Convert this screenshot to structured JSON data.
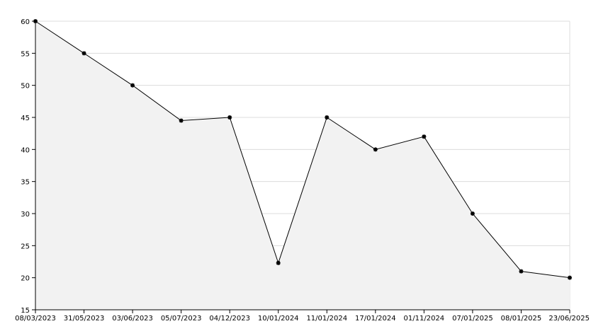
{
  "chart_data": {
    "type": "area",
    "categories": [
      "08/03/2023",
      "31/05/2023",
      "03/06/2023",
      "05/07/2023",
      "04/12/2023",
      "10/01/2024",
      "11/01/2024",
      "17/01/2024",
      "01/11/2024",
      "07/01/2025",
      "08/01/2025",
      "23/06/2025"
    ],
    "values": [
      60,
      55,
      50,
      44.5,
      45,
      22.3,
      45,
      40,
      42,
      30,
      21,
      20
    ],
    "yticks": [
      15,
      20,
      25,
      30,
      35,
      40,
      45,
      50,
      55,
      60
    ],
    "ylim": [
      15,
      60
    ],
    "grid": "horizontal",
    "marker": "star",
    "colors": {
      "line": "#000000",
      "fill": "#f2f2f2",
      "grid": "#dcdcdc",
      "axis": "#000000",
      "background": "#ffffff"
    }
  }
}
